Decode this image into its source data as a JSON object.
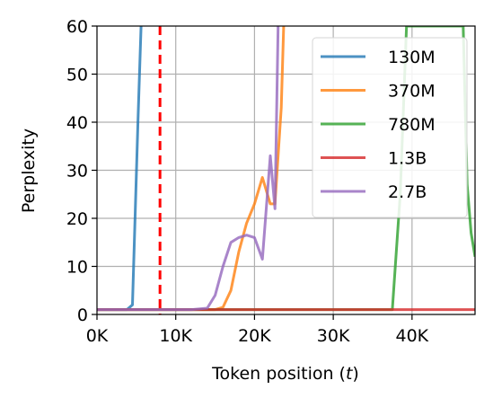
{
  "chart_data": {
    "type": "line",
    "xlabel": "Token position (",
    "xlabel_var": "t",
    "xlabel_end": ")",
    "ylabel": "Perplexity",
    "xlim": [
      0,
      48000
    ],
    "ylim": [
      0,
      60
    ],
    "grid": true,
    "legend_position": "top-right",
    "x_ticks": [
      0,
      10000,
      20000,
      30000,
      40000
    ],
    "x_tick_labels": [
      "0K",
      "10K",
      "20K",
      "30K",
      "40K"
    ],
    "y_ticks": [
      0,
      10,
      20,
      30,
      40,
      50,
      60
    ],
    "y_tick_labels": [
      "0",
      "10",
      "20",
      "30",
      "40",
      "50",
      "60"
    ],
    "reference_line": {
      "x": 8000,
      "color": "#ff0000",
      "style": "dashed"
    },
    "series": [
      {
        "name": "130M",
        "color": "#1f77b4",
        "x": [
          0,
          3800,
          4500,
          5200,
          5600
        ],
        "y": [
          1,
          1,
          2,
          40,
          60
        ]
      },
      {
        "name": "370M",
        "color": "#ff7f0e",
        "x": [
          0,
          15000,
          16000,
          17000,
          18000,
          19000,
          20000,
          21000,
          22000,
          22600,
          23400,
          23700
        ],
        "y": [
          1,
          1,
          1.5,
          5,
          13,
          19,
          23,
          28.5,
          23,
          23,
          43,
          60
        ]
      },
      {
        "name": "780M",
        "color": "#2ca02c",
        "x": [
          0,
          37500,
          38500,
          39300,
          46500,
          47000,
          47500,
          48000
        ],
        "y": [
          1,
          1,
          25,
          60,
          60,
          27,
          17,
          12
        ]
      },
      {
        "name": "1.3B",
        "color": "#d62728",
        "x": [
          0,
          48000
        ],
        "y": [
          1,
          1
        ]
      },
      {
        "name": "2.7B",
        "color": "#9467bd",
        "x": [
          0,
          12000,
          14000,
          15000,
          16000,
          17000,
          18000,
          19000,
          20000,
          21000,
          22000,
          22600,
          23000
        ],
        "y": [
          1,
          1,
          1.3,
          4,
          10,
          15,
          16,
          16.5,
          16,
          11.5,
          33,
          22,
          60
        ]
      }
    ]
  }
}
